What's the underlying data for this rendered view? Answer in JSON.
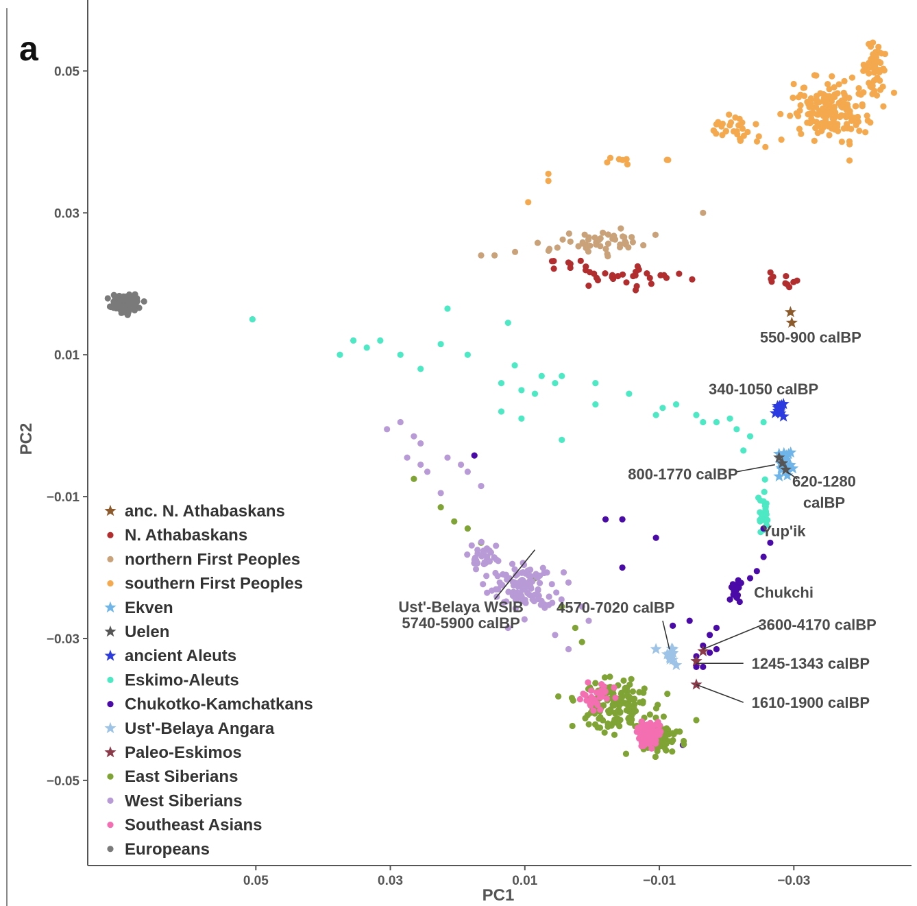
{
  "chart_data": {
    "type": "scatter",
    "panel_label": "a",
    "xlabel": "PC1",
    "ylabel": "PC2",
    "xlim": [
      0.075,
      -0.0475
    ],
    "ylim": [
      -0.062,
      0.06
    ],
    "x_reversed": true,
    "x_ticks": [
      {
        "v": 0.05,
        "label": "0.05"
      },
      {
        "v": 0.03,
        "label": "0.03"
      },
      {
        "v": 0.01,
        "label": "0.01"
      },
      {
        "v": -0.01,
        "label": "−0.01"
      },
      {
        "v": -0.03,
        "label": "−0.03"
      }
    ],
    "y_ticks": [
      {
        "v": 0.05,
        "label": "0.05"
      },
      {
        "v": 0.03,
        "label": "0.03"
      },
      {
        "v": 0.01,
        "label": "0.01"
      },
      {
        "v": -0.01,
        "label": "−0.01"
      },
      {
        "v": -0.03,
        "label": "−0.03"
      },
      {
        "v": -0.05,
        "label": "−0.05"
      }
    ],
    "grid": false,
    "legend_position": "bottom-left",
    "series": [
      {
        "name": "anc. N. Athabaskans",
        "color": "#8c5a2b",
        "marker": "star",
        "points": [
          [
            -0.0295,
            0.016
          ],
          [
            -0.0297,
            0.0145
          ]
        ]
      },
      {
        "name": "N. Athabaskans",
        "color": "#b22e2e",
        "marker": "dot",
        "clusters": [
          {
            "cx": -0.005,
            "cy": 0.021,
            "sx": 0.008,
            "sy": 0.0012,
            "n": 28
          },
          {
            "cx": -0.0275,
            "cy": 0.0205,
            "sx": 0.0025,
            "sy": 0.0012,
            "n": 10
          },
          {
            "cx": 0.0035,
            "cy": 0.0225,
            "sx": 0.0025,
            "sy": 0.0008,
            "n": 8
          }
        ]
      },
      {
        "name": "northern First Peoples",
        "color": "#c9a27a",
        "marker": "dot",
        "clusters": [
          {
            "cx": -0.002,
            "cy": 0.026,
            "sx": 0.006,
            "sy": 0.0012,
            "n": 32
          },
          {
            "cx": 0.0,
            "cy": 0.025,
            "sx": 0.009,
            "sy": 0.0015,
            "n": 14
          }
        ],
        "points": [
          [
            0.0165,
            0.024
          ],
          [
            0.0145,
            0.024
          ],
          [
            -0.0165,
            0.03
          ]
        ]
      },
      {
        "name": "southern First Peoples",
        "color": "#f5a94e",
        "marker": "dot",
        "clusters": [
          {
            "cx": -0.0355,
            "cy": 0.0445,
            "sx": 0.0045,
            "sy": 0.0035,
            "n": 180
          },
          {
            "cx": -0.042,
            "cy": 0.0505,
            "sx": 0.0015,
            "sy": 0.0025,
            "n": 50
          },
          {
            "cx": -0.021,
            "cy": 0.0415,
            "sx": 0.004,
            "sy": 0.002,
            "n": 30
          },
          {
            "cx": -0.005,
            "cy": 0.0375,
            "sx": 0.005,
            "sy": 0.001,
            "n": 8
          }
        ],
        "points": [
          [
            0.0065,
            0.0345
          ],
          [
            0.0065,
            0.0355
          ],
          [
            0.0095,
            0.0315
          ]
        ]
      },
      {
        "name": "Ekven",
        "color": "#6fb5ea",
        "marker": "star",
        "clusters": [
          {
            "cx": -0.0285,
            "cy": -0.0055,
            "sx": 0.001,
            "sy": 0.0018,
            "n": 24
          }
        ]
      },
      {
        "name": "Uelen",
        "color": "#555555",
        "marker": "star",
        "points": [
          [
            -0.0283,
            -0.0053
          ],
          [
            -0.0288,
            -0.0062
          ],
          [
            -0.0278,
            -0.0045
          ]
        ]
      },
      {
        "name": "ancient Aleuts",
        "color": "#2b3be0",
        "marker": "star",
        "clusters": [
          {
            "cx": -0.0278,
            "cy": 0.0023,
            "sx": 0.0008,
            "sy": 0.0006,
            "n": 14
          }
        ]
      },
      {
        "name": "Eskimo-Aleuts",
        "color": "#4de8c4",
        "marker": "dot",
        "clusters": [
          {
            "cx": -0.0255,
            "cy": -0.0125,
            "sx": 0.0008,
            "sy": 0.0025,
            "n": 26
          }
        ],
        "points": [
          [
            0.0505,
            0.015
          ],
          [
            0.0375,
            0.01
          ],
          [
            0.0355,
            0.012
          ],
          [
            0.0335,
            0.011
          ],
          [
            0.0315,
            0.012
          ],
          [
            0.0285,
            0.01
          ],
          [
            0.0255,
            0.008
          ],
          [
            0.0225,
            0.0115
          ],
          [
            0.0215,
            0.0165
          ],
          [
            0.0185,
            0.01
          ],
          [
            0.0125,
            0.0145
          ],
          [
            0.0115,
            0.0085
          ],
          [
            0.0105,
            0.005
          ],
          [
            0.0085,
            0.0045
          ],
          [
            0.0075,
            0.007
          ],
          [
            0.0105,
            0.001
          ],
          [
            0.0055,
            0.006
          ],
          [
            0.0045,
            0.007
          ],
          [
            0.0135,
            0.006
          ],
          [
            0.0045,
            -0.002
          ],
          [
            0.0135,
            0.002
          ],
          [
            -0.0005,
            0.006
          ],
          [
            -0.0005,
            0.003
          ],
          [
            -0.0055,
            0.0045
          ],
          [
            -0.0095,
            0.0015
          ],
          [
            -0.0125,
            0.003
          ],
          [
            -0.0155,
            0.0015
          ],
          [
            -0.0185,
            0.0005
          ],
          [
            -0.0205,
            0.001
          ],
          [
            -0.0215,
            -0.0005
          ],
          [
            -0.0235,
            -0.0015
          ],
          [
            -0.0255,
            0.0005
          ],
          [
            -0.0105,
            0.0025
          ],
          [
            -0.0165,
            0.0005
          ],
          [
            -0.0225,
            -0.0035
          ]
        ]
      },
      {
        "name": "Chukotko-Kamchatkans",
        "color": "#4a0aa8",
        "marker": "dot",
        "clusters": [
          {
            "cx": -0.0215,
            "cy": -0.0235,
            "sx": 0.0008,
            "sy": 0.0015,
            "n": 20
          }
        ],
        "points": [
          [
            0.0175,
            -0.0042
          ],
          [
            -0.002,
            -0.0132
          ],
          [
            -0.0045,
            -0.0132
          ],
          [
            -0.0045,
            -0.02
          ],
          [
            -0.0095,
            -0.0158
          ],
          [
            -0.012,
            -0.0282
          ],
          [
            -0.0145,
            -0.0275
          ],
          [
            -0.0265,
            -0.0165
          ],
          [
            -0.0255,
            -0.0185
          ],
          [
            -0.0245,
            -0.0205
          ],
          [
            -0.0235,
            -0.0215
          ],
          [
            -0.0205,
            -0.0245
          ],
          [
            -0.0185,
            -0.0285
          ],
          [
            -0.0175,
            -0.0295
          ],
          [
            -0.0165,
            -0.031
          ],
          [
            -0.0165,
            -0.034
          ],
          [
            -0.0175,
            -0.032
          ],
          [
            -0.0155,
            -0.0325
          ],
          [
            -0.0185,
            -0.0315
          ],
          [
            -0.0155,
            -0.034
          ],
          [
            -0.0255,
            -0.0145
          ],
          [
            -0.0135,
            -0.045
          ]
        ]
      },
      {
        "name": "Ust'-Belaya Angara",
        "color": "#9dc3e6",
        "marker": "star",
        "clusters": [
          {
            "cx": -0.0115,
            "cy": -0.0325,
            "sx": 0.0006,
            "sy": 0.0012,
            "n": 10
          }
        ],
        "points": [
          [
            -0.0095,
            -0.0315
          ]
        ]
      },
      {
        "name": "Paleo-Eskimos",
        "color": "#8b3a4a",
        "marker": "star",
        "points": [
          [
            -0.0155,
            -0.0332
          ],
          [
            -0.0155,
            -0.0365
          ],
          [
            -0.0165,
            -0.0318
          ]
        ]
      },
      {
        "name": "East Siberians",
        "color": "#7fa334",
        "marker": "dot",
        "clusters": [
          {
            "cx": -0.0035,
            "cy": -0.0395,
            "sx": 0.0045,
            "sy": 0.0028,
            "n": 160
          },
          {
            "cx": -0.0105,
            "cy": -0.0445,
            "sx": 0.0025,
            "sy": 0.002,
            "n": 60
          }
        ],
        "points": [
          [
            0.0265,
            -0.0075
          ],
          [
            0.0225,
            -0.0115
          ],
          [
            0.0205,
            -0.0135
          ],
          [
            0.0185,
            -0.0145
          ],
          [
            0.0165,
            -0.0165
          ],
          [
            0.0095,
            -0.0225
          ],
          [
            0.0085,
            -0.0215
          ],
          [
            0.0045,
            -0.0255
          ],
          [
            0.0025,
            -0.0285
          ],
          [
            0.0015,
            -0.0305
          ],
          [
            -0.0155,
            -0.0415
          ]
        ]
      },
      {
        "name": "West Siberians",
        "color": "#b89bd6",
        "marker": "dot",
        "clusters": [
          {
            "cx": 0.0105,
            "cy": -0.0225,
            "sx": 0.004,
            "sy": 0.0028,
            "n": 110
          },
          {
            "cx": 0.0155,
            "cy": -0.0185,
            "sx": 0.0025,
            "sy": 0.0015,
            "n": 30
          }
        ],
        "points": [
          [
            0.0275,
            -0.0045
          ],
          [
            0.0255,
            -0.0055
          ],
          [
            0.0215,
            -0.0045
          ],
          [
            0.0195,
            -0.0055
          ],
          [
            0.0185,
            -0.0065
          ],
          [
            0.0165,
            -0.0085
          ],
          [
            0.0245,
            -0.0065
          ],
          [
            0.0225,
            -0.0095
          ],
          [
            0.0305,
            -0.0005
          ],
          [
            0.0285,
            0.0005
          ],
          [
            0.0265,
            -0.0015
          ],
          [
            0.0255,
            -0.0025
          ],
          [
            0.0125,
            -0.0285
          ],
          [
            0.0015,
            -0.0255
          ],
          [
            0.0005,
            -0.0275
          ],
          [
            0.0055,
            -0.0295
          ],
          [
            0.0035,
            -0.0315
          ]
        ]
      },
      {
        "name": "Southeast Asians",
        "color": "#f46fb2",
        "marker": "dot",
        "clusters": [
          {
            "cx": -0.0085,
            "cy": -0.0435,
            "sx": 0.0013,
            "sy": 0.0015,
            "n": 80
          },
          {
            "cx": -0.0005,
            "cy": -0.0385,
            "sx": 0.0022,
            "sy": 0.0018,
            "n": 30
          }
        ]
      },
      {
        "name": "Europeans",
        "color": "#7a7a7a",
        "marker": "dot",
        "clusters": [
          {
            "cx": 0.0695,
            "cy": 0.0173,
            "sx": 0.0016,
            "sy": 0.0009,
            "n": 150
          }
        ]
      }
    ],
    "annotations": [
      {
        "text": "550-900 calBP",
        "x": -0.0325,
        "y": 0.0125,
        "line": null
      },
      {
        "text": "340-1050 calBP",
        "x": -0.0255,
        "y": 0.0052,
        "line": null
      },
      {
        "text": "800-1770 calBP",
        "x": -0.0135,
        "y": -0.0068,
        "line": [
          -0.0272,
          -0.0055,
          -0.0215,
          -0.0065
        ]
      },
      {
        "text": "620-1280",
        "x": -0.0345,
        "y": -0.0078,
        "line": [
          -0.029,
          -0.0065,
          -0.0305,
          -0.0075
        ]
      },
      {
        "text": "calBP",
        "x": -0.0345,
        "y": -0.0108,
        "line": null
      },
      {
        "text": "Yup'ik",
        "x": -0.0285,
        "y": -0.0148,
        "line": null
      },
      {
        "text": "Chukchi",
        "x": -0.0285,
        "y": -0.0235,
        "line": null
      },
      {
        "text": "4570-7020 calBP",
        "x": -0.0035,
        "y": -0.0256,
        "line": [
          -0.0115,
          -0.0315,
          -0.0105,
          -0.0275
        ]
      },
      {
        "text": "3600-4170 calBP",
        "x": -0.0335,
        "y": -0.028,
        "line": [
          -0.0165,
          -0.0315,
          -0.0255,
          -0.028
        ]
      },
      {
        "text": "1245-1343 calBP",
        "x": -0.0325,
        "y": -0.0335,
        "line": [
          -0.0155,
          -0.0335,
          -0.0225,
          -0.0335
        ]
      },
      {
        "text": "1610-1900 calBP",
        "x": -0.0325,
        "y": -0.039,
        "line": [
          -0.0155,
          -0.0365,
          -0.0225,
          -0.039
        ]
      },
      {
        "text": "Ust'-Belaya WSIB",
        "x": 0.0195,
        "y": -0.0255,
        "line": [
          0.0145,
          -0.0245,
          0.0085,
          -0.0175
        ]
      },
      {
        "text": "5740-5900 calBP",
        "x": 0.0195,
        "y": -0.0278,
        "line": null
      }
    ]
  }
}
